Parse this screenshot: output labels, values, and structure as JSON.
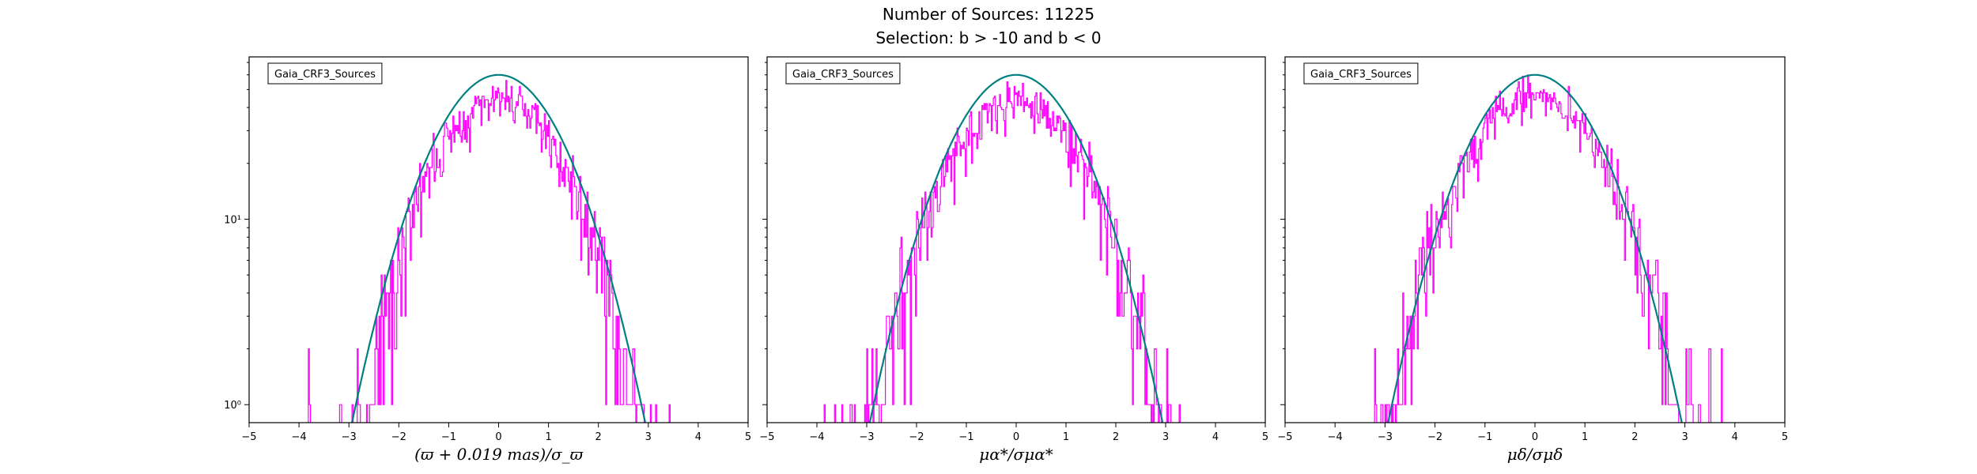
{
  "figure": {
    "title": "Number of Sources: 11225",
    "subtitle": "Selection: b > -10 and b < 0"
  },
  "colors": {
    "histogram": "#ff00ff",
    "gaussian": "#008080",
    "axes": "#000000"
  },
  "chart_data": [
    {
      "type": "histogram",
      "legend": "Gaia_CRF3_Sources",
      "legend_position": "top-left",
      "xlabel": "(ϖ + 0.019 mas)/σ_ϖ",
      "xlim": [
        -5,
        5
      ],
      "xticks": [
        -5,
        -4,
        -3,
        -2,
        -1,
        0,
        1,
        2,
        3,
        4,
        5
      ],
      "ylim": [
        0.8,
        75
      ],
      "yscale": "log",
      "yticks": [
        {
          "value": 1,
          "label": "10⁰"
        },
        {
          "value": 10,
          "label": "10¹"
        }
      ],
      "gaussian_peak": 60,
      "hist_peak": 45,
      "hist_sigma": 1.0,
      "hist_range": [
        -4.5,
        4.5
      ],
      "seed": 3
    },
    {
      "type": "histogram",
      "legend": "Gaia_CRF3_Sources",
      "legend_position": "top-left",
      "xlabel": "μα*/σμα*",
      "xlim": [
        -5,
        5
      ],
      "xticks": [
        -5,
        -4,
        -3,
        -2,
        -1,
        0,
        1,
        2,
        3,
        4,
        5
      ],
      "ylim": [
        0.8,
        75
      ],
      "yscale": "log",
      "yticks": [
        {
          "value": 1,
          "label": "10⁰"
        },
        {
          "value": 10,
          "label": "10¹"
        }
      ],
      "gaussian_peak": 60,
      "hist_peak": 45,
      "hist_sigma": 1.05,
      "hist_range": [
        -4.8,
        4.4
      ],
      "seed": 11
    },
    {
      "type": "histogram",
      "legend": "Gaia_CRF3_Sources",
      "legend_position": "top-left",
      "xlabel": "μδ/σμδ",
      "xlim": [
        -5,
        5
      ],
      "xticks": [
        -5,
        -4,
        -3,
        -2,
        -1,
        0,
        1,
        2,
        3,
        4,
        5
      ],
      "ylim": [
        0.8,
        75
      ],
      "yscale": "log",
      "yticks": [
        {
          "value": 1,
          "label": "10⁰"
        },
        {
          "value": 10,
          "label": "10¹"
        }
      ],
      "gaussian_peak": 60,
      "hist_peak": 47,
      "hist_sigma": 1.05,
      "hist_range": [
        -4.9,
        4.9
      ],
      "seed": 29
    }
  ]
}
